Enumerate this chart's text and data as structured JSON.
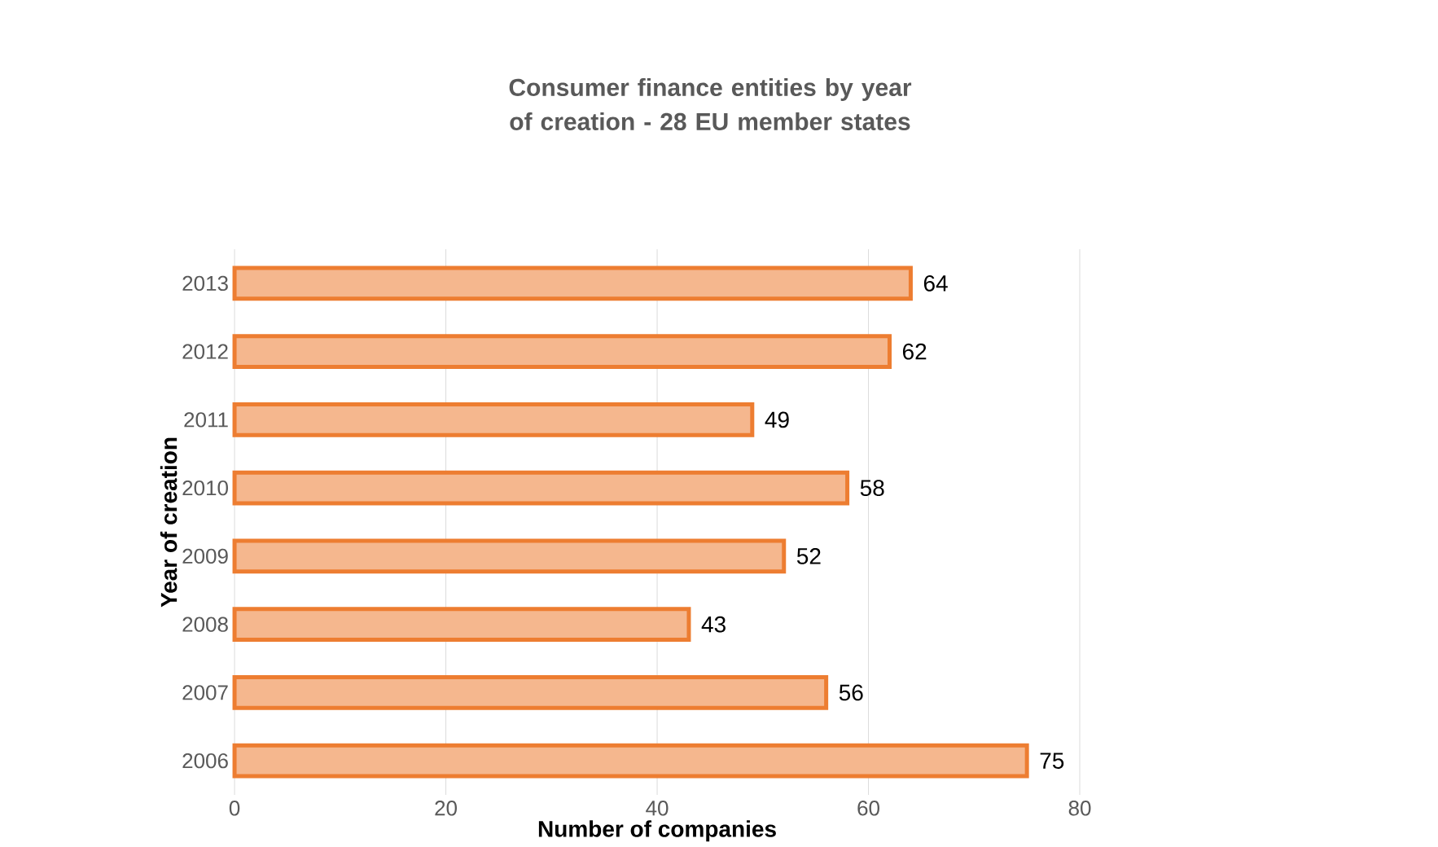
{
  "chart_data": {
    "type": "bar",
    "orientation": "horizontal",
    "title": "Consumer finance entities by year of creation - 28 EU member states",
    "xlabel": "Number of companies",
    "ylabel": "Year of creation",
    "categories": [
      "2013",
      "2012",
      "2011",
      "2010",
      "2009",
      "2008",
      "2007",
      "2006"
    ],
    "values": [
      64,
      62,
      49,
      58,
      52,
      43,
      56,
      75
    ],
    "color": "#ed7d31",
    "xlim": [
      0,
      80
    ],
    "xticks": [
      0,
      20,
      40,
      60,
      80
    ],
    "grid": "x",
    "data_labels": true
  }
}
